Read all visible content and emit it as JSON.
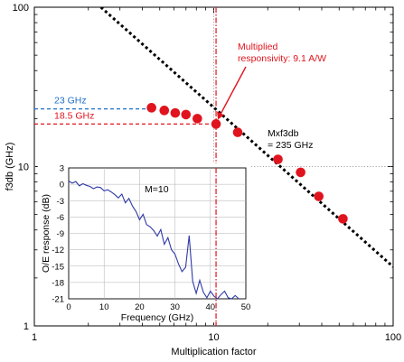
{
  "chart_data": [
    {
      "type": "scatter",
      "title": "",
      "xlabel": "Multiplication factor",
      "ylabel": "f3db (GHz)",
      "xscale": "log",
      "yscale": "log",
      "xlim": [
        1,
        100
      ],
      "ylim": [
        1,
        100
      ],
      "x_ticks": [
        {
          "value": 1,
          "label": "1"
        },
        {
          "value": 10,
          "label": "10"
        },
        {
          "value": 100,
          "label": "100"
        }
      ],
      "y_ticks": [
        {
          "value": 1,
          "label": "1"
        },
        {
          "value": 10,
          "label": "10"
        },
        {
          "value": 100,
          "label": "100"
        }
      ],
      "series": [
        {
          "kind": "points",
          "color": "#e0141e",
          "x": [
            4.5,
            5.3,
            6.1,
            7.0,
            8.1,
            10.3,
            13.6,
            22.8,
            30.5,
            38.5,
            52.5
          ],
          "y": [
            23.4,
            22.5,
            21.7,
            21.2,
            20.0,
            18.5,
            16.4,
            11.1,
            9.2,
            6.5,
            4.7
          ]
        },
        {
          "kind": "fit-line",
          "style": "dotted",
          "color": "#000000",
          "x": [
            2.35,
            100
          ],
          "y": [
            100,
            2.35
          ]
        }
      ],
      "reference_lines": [
        {
          "axis": "y",
          "value": 23,
          "color": "#1f6fc7",
          "style": "dashed",
          "label": "23 GHz",
          "x_to": 4.5
        },
        {
          "axis": "y",
          "value": 18.5,
          "color": "#e0141e",
          "style": "dashed",
          "label": "18.5 GHz",
          "x_to": 10.3
        },
        {
          "axis": "x",
          "value": 10.3,
          "color": "#e0141e",
          "style": "dash-dot"
        },
        {
          "axis": "x",
          "value": 10,
          "color": "#888888",
          "style": "dotted"
        },
        {
          "axis": "y",
          "value": 10,
          "color": "#888888",
          "style": "dotted"
        }
      ],
      "annotations": [
        {
          "text_lines": [
            "Multiplied",
            "responsivity: 9.1 A/W"
          ],
          "color": "#e0141e",
          "arrow_to": [
            10.3,
            18.5
          ]
        },
        {
          "text_lines": [
            "Mxf3db",
            "= 235 GHz"
          ],
          "color": "#000000"
        }
      ]
    },
    {
      "type": "line",
      "title": "",
      "xlabel": "Frequency (GHz)",
      "ylabel": "O/E response (dB)",
      "xlim": [
        0,
        50
      ],
      "ylim": [
        -21,
        3
      ],
      "x_ticks": [
        0,
        10,
        20,
        30,
        40,
        50
      ],
      "y_ticks": [
        3,
        0,
        -3,
        -6,
        -9,
        -12,
        -15,
        -18,
        -21
      ],
      "grid": true,
      "annotation": "M=10",
      "series": [
        {
          "color": "#2e3aa6",
          "x": [
            0,
            1,
            2,
            3,
            4,
            5,
            6,
            7,
            8,
            9,
            10,
            11,
            12,
            13,
            14,
            15,
            16,
            17,
            18,
            19,
            20,
            21,
            22,
            23,
            24,
            25,
            26,
            27,
            28,
            29,
            30,
            31,
            32,
            33,
            34,
            35,
            36,
            37,
            38,
            39,
            40,
            41,
            42,
            43,
            44,
            45,
            46,
            47,
            48
          ],
          "y": [
            0.6,
            0.2,
            0.5,
            -0.3,
            0.1,
            -0.2,
            -0.4,
            -0.8,
            -0.5,
            -0.6,
            -1.2,
            -1.0,
            -1.4,
            -1.9,
            -2.5,
            -1.8,
            -3.4,
            -2.6,
            -4.0,
            -5.0,
            -6.5,
            -5.5,
            -7.4,
            -7.8,
            -8.5,
            -9.5,
            -8.3,
            -11.0,
            -9.8,
            -12.0,
            -12.8,
            -14.6,
            -16.0,
            -15.2,
            -9.4,
            -17.8,
            -20.0,
            -17.6,
            -19.8,
            -20.8,
            -19.6,
            -20.5,
            -21.0,
            -20.2,
            -19.6,
            -20.8,
            -21.0,
            -20.4,
            -21.0
          ]
        }
      ]
    }
  ]
}
